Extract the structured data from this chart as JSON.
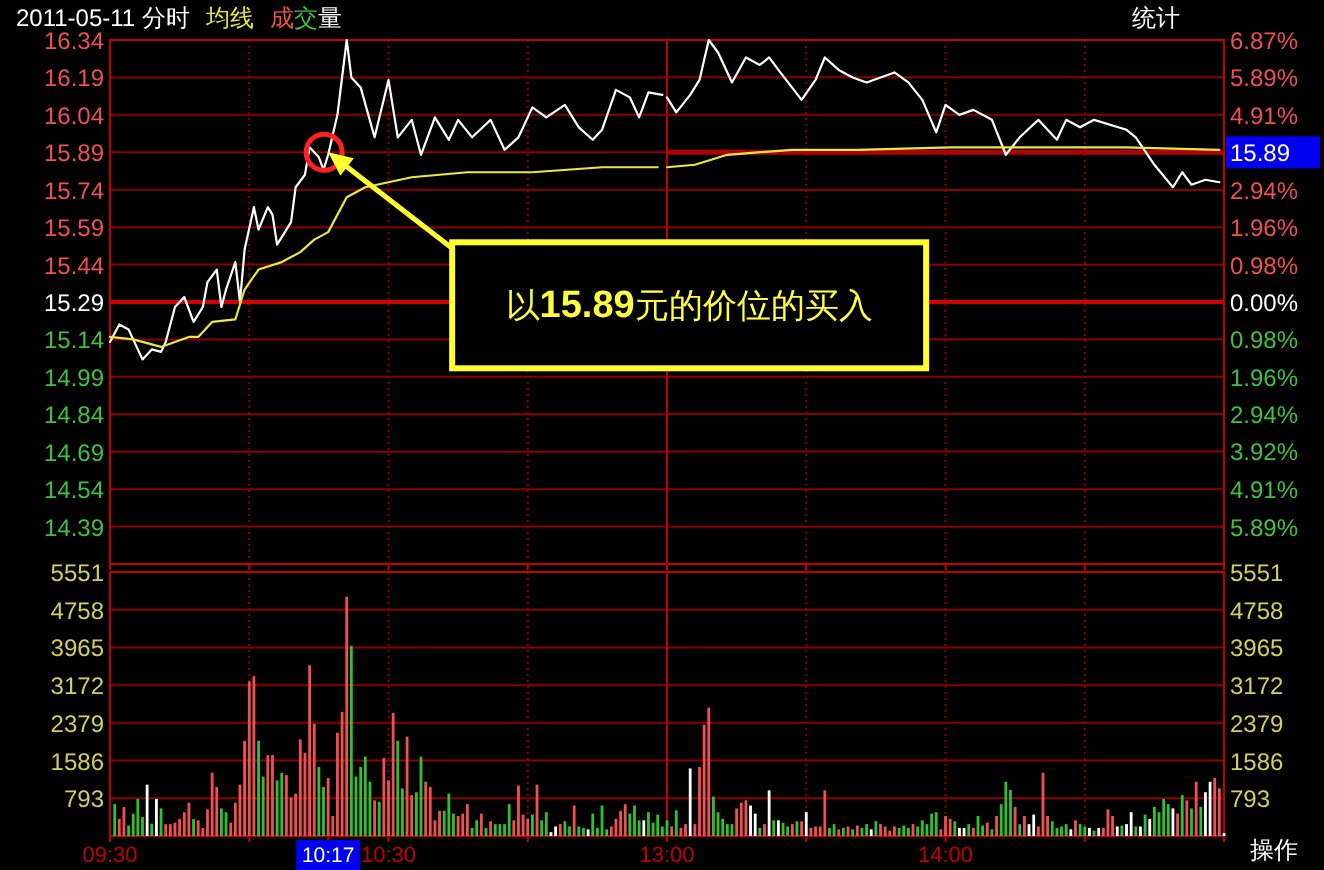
{
  "chart_data": [
    {
      "type": "line",
      "title": "2011-05-11 分时",
      "legend": "top left",
      "grid": true,
      "tick_labels": "y",
      "xlim": [
        "2011-05-11T09:30",
        "2011-05-11T11:30"
      ],
      "xticks": [
        {
          "value": "2011-05-11T09:30",
          "label": null
        },
        {
          "value": "2011-05-11T10:00",
          "label": null
        },
        {
          "value": "2011-05-11T10:30",
          "label": null
        },
        {
          "value": "2011-05-11T11:00",
          "label": null
        },
        {
          "value": "2011-05-11T11:30",
          "label": null
        }
      ],
      "ylim": [
        14.24,
        16.34
      ],
      "yticks": [
        14.39,
        14.54,
        14.69,
        14.84,
        14.99,
        15.14,
        15.29,
        15.44,
        15.59,
        15.74,
        15.89,
        16.04,
        16.19,
        16.34
      ],
      "ref_lines": [
        {
          "axis": "y",
          "value": 15.29,
          "color": "#d00000"
        }
      ],
      "series": [
        {
          "color": "#ffffff",
          "x": [
            "2011-05-11T09:30",
            "2011-05-11T09:32",
            "2011-05-11T09:34",
            "2011-05-11T09:36",
            "2011-05-11T09:37",
            "2011-05-11T09:39",
            "2011-05-11T09:41",
            "2011-05-11T09:42",
            "2011-05-11T09:44",
            "2011-05-11T09:46",
            "2011-05-11T09:48",
            "2011-05-11T09:50",
            "2011-05-11T09:51",
            "2011-05-11T09:53",
            "2011-05-11T09:54",
            "2011-05-11T09:55",
            "2011-05-11T09:57",
            "2011-05-11T09:58",
            "2011-05-11T09:59",
            "2011-05-11T10:01",
            "2011-05-11T10:02",
            "2011-05-11T10:04",
            "2011-05-11T10:05",
            "2011-05-11T10:06",
            "2011-05-11T10:09",
            "2011-05-11T10:10",
            "2011-05-11T10:12",
            "2011-05-11T10:13",
            "2011-05-11T10:15",
            "2011-05-11T10:16",
            "2011-05-11T10:17",
            "2011-05-11T10:19",
            "2011-05-11T10:21",
            "2011-05-11T10:22",
            "2011-05-11T10:24",
            "2011-05-11T10:27",
            "2011-05-11T10:30",
            "2011-05-11T10:32",
            "2011-05-11T10:35",
            "2011-05-11T10:37",
            "2011-05-11T10:40",
            "2011-05-11T10:43",
            "2011-05-11T10:45",
            "2011-05-11T10:48",
            "2011-05-11T10:52",
            "2011-05-11T10:55",
            "2011-05-11T10:58",
            "2011-05-11T11:01",
            "2011-05-11T11:04",
            "2011-05-11T11:08",
            "2011-05-11T11:11",
            "2011-05-11T11:14",
            "2011-05-11T11:16",
            "2011-05-11T11:19",
            "2011-05-11T11:22",
            "2011-05-11T11:24",
            "2011-05-11T11:26",
            "2011-05-11T11:29"
          ],
          "values": [
            15.13,
            15.2,
            15.18,
            15.1,
            15.06,
            15.1,
            15.09,
            15.13,
            15.27,
            15.31,
            15.21,
            15.27,
            15.37,
            15.42,
            15.27,
            15.34,
            15.45,
            15.29,
            15.5,
            15.67,
            15.58,
            15.67,
            15.64,
            15.52,
            15.61,
            15.75,
            15.8,
            15.91,
            15.87,
            15.82,
            15.88,
            16.04,
            16.34,
            16.19,
            16.15,
            15.95,
            16.18,
            15.95,
            16.02,
            15.88,
            16.03,
            15.94,
            16.02,
            15.95,
            16.02,
            15.9,
            15.95,
            16.07,
            16.03,
            16.08,
            15.99,
            15.94,
            15.98,
            16.14,
            16.11,
            16.03,
            16.13,
            16.12
          ]
        },
        {
          "name": "均线",
          "color": "#e8e840",
          "x": [
            "2011-05-11T09:30",
            "2011-05-11T09:35",
            "2011-05-11T09:41",
            "2011-05-11T09:47",
            "2011-05-11T09:49",
            "2011-05-11T09:52",
            "2011-05-11T09:57",
            "2011-05-11T09:59",
            "2011-05-11T10:02",
            "2011-05-11T10:07",
            "2011-05-11T10:11",
            "2011-05-11T10:14",
            "2011-05-11T10:17",
            "2011-05-11T10:21",
            "2011-05-11T10:25",
            "2011-05-11T10:30",
            "2011-05-11T10:35",
            "2011-05-11T10:47",
            "2011-05-11T11:01",
            "2011-05-11T11:16",
            "2011-05-11T11:28"
          ],
          "values": [
            15.15,
            15.14,
            15.11,
            15.15,
            15.15,
            15.21,
            15.22,
            15.34,
            15.42,
            15.45,
            15.49,
            15.54,
            15.57,
            15.71,
            15.75,
            15.77,
            15.79,
            15.81,
            15.81,
            15.83,
            15.83
          ]
        }
      ],
      "annotations": [
        "以**15.89**元的价位的买入"
      ]
    },
    {
      "type": "line",
      "grid": true,
      "tick_labels": "y",
      "xlim": [
        "2011-05-11T13:00",
        "2011-05-11T15:00"
      ],
      "xticks": [
        {
          "value": "2011-05-11T13:00",
          "label": null
        },
        {
          "value": "2011-05-11T13:30",
          "label": null
        },
        {
          "value": "2011-05-11T14:00",
          "label": null
        },
        {
          "value": "2011-05-11T14:30",
          "label": null
        },
        {
          "value": "2011-05-11T15:00",
          "label": null
        }
      ],
      "ylim": [
        14.24,
        16.34
      ],
      "y2lim": [
        -6.87,
        6.87
      ],
      "y2ticks": [
        {
          "value": -5.89,
          "label": "5.89%"
        },
        {
          "value": -4.91,
          "label": "4.91%"
        },
        {
          "value": -3.92,
          "label": "3.92%"
        },
        {
          "value": -2.94,
          "label": "2.94%"
        },
        {
          "value": -1.96,
          "label": "1.96%"
        },
        {
          "value": -0.98,
          "label": "0.98%"
        },
        {
          "value": 0,
          "label": "0.00%"
        },
        {
          "value": 0.98,
          "label": "0.98%"
        },
        {
          "value": 1.96,
          "label": "1.96%"
        },
        {
          "value": 2.94,
          "label": "2.94%"
        },
        {
          "value": 3.92,
          "label": null
        },
        {
          "value": 4.91,
          "label": "4.91%"
        },
        {
          "value": 5.89,
          "label": "5.89%"
        },
        {
          "value": 6.87,
          "label": "6.87%"
        }
      ],
      "ref_lines": [
        {
          "axis": "y",
          "value": 15.29,
          "color": "#d00000"
        },
        {
          "axis": "y",
          "value": 15.89,
          "label": "15.89",
          "color": "#b00000"
        }
      ],
      "series": [
        {
          "color": "#ffffff",
          "x": [
            "2011-05-11T13:00",
            "2011-05-11T13:02",
            "2011-05-11T13:05",
            "2011-05-11T13:07",
            "2011-05-11T13:09",
            "2011-05-11T13:11",
            "2011-05-11T13:14",
            "2011-05-11T13:17",
            "2011-05-11T13:20",
            "2011-05-11T13:22",
            "2011-05-11T13:24",
            "2011-05-11T13:29",
            "2011-05-11T13:32",
            "2011-05-11T13:34",
            "2011-05-11T13:37",
            "2011-05-11T13:40",
            "2011-05-11T13:43",
            "2011-05-11T13:49",
            "2011-05-11T13:52",
            "2011-05-11T13:55",
            "2011-05-11T13:58",
            "2011-05-11T14:00",
            "2011-05-11T14:03",
            "2011-05-11T14:06",
            "2011-05-11T14:10",
            "2011-05-11T14:13",
            "2011-05-11T14:16",
            "2011-05-11T14:20",
            "2011-05-11T14:24",
            "2011-05-11T14:26",
            "2011-05-11T14:29",
            "2011-05-11T14:32",
            "2011-05-11T14:39",
            "2011-05-11T14:41",
            "2011-05-11T14:45",
            "2011-05-11T14:49",
            "2011-05-11T14:51",
            "2011-05-11T14:53",
            "2011-05-11T14:56",
            "2011-05-11T14:59"
          ],
          "values": [
            16.11,
            16.05,
            16.12,
            16.18,
            16.34,
            16.29,
            16.17,
            16.27,
            16.24,
            16.27,
            16.22,
            16.1,
            16.18,
            16.27,
            16.22,
            16.19,
            16.17,
            16.21,
            16.17,
            16.1,
            15.97,
            16.08,
            16.04,
            16.06,
            16.02,
            15.88,
            15.95,
            16.02,
            15.94,
            16.02,
            15.99,
            16.02,
            15.98,
            15.95,
            15.84,
            15.75,
            15.81,
            15.76,
            15.78,
            15.77
          ]
        },
        {
          "color": "#e8e840",
          "x": [
            "2011-05-11T13:00",
            "2011-05-11T13:06",
            "2011-05-11T13:13",
            "2011-05-11T13:27",
            "2011-05-11T13:41",
            "2011-05-11T14:01",
            "2011-05-11T14:39",
            "2011-05-11T14:59"
          ],
          "values": [
            15.83,
            15.84,
            15.88,
            15.9,
            15.9,
            15.91,
            15.91,
            15.9
          ]
        }
      ],
      "annotations": [
        "统计"
      ]
    },
    {
      "type": "bar",
      "legend": "top left",
      "grid": true,
      "xlim": [
        "2011-05-11T09:30",
        "2011-05-11T11:30"
      ],
      "xticks": [
        {
          "value": "2011-05-11T09:30",
          "label": "09:30"
        },
        {
          "value": "2011-05-11T10:00",
          "label": null
        },
        {
          "value": "2011-05-11T10:17",
          "label": "10:17"
        },
        {
          "value": "2011-05-11T10:30",
          "label": "10:30"
        },
        {
          "value": "2011-05-11T11:00",
          "label": null
        },
        {
          "value": "2011-05-11T11:30",
          "label": null
        }
      ],
      "ylim": [
        0,
        5551
      ],
      "yticks": [
        793,
        1586,
        2379,
        3172,
        3965,
        4758,
        5551
      ],
      "series": [
        {
          "name": "成交量",
          "x": [
            "2011-05-11T09:31",
            "2011-05-11T09:32",
            "2011-05-11T09:33",
            "2011-05-11T09:34",
            "2011-05-11T09:35",
            "2011-05-11T09:36",
            "2011-05-11T09:37",
            "2011-05-11T09:38",
            "2011-05-11T09:39",
            "2011-05-11T09:40",
            "2011-05-11T09:41",
            "2011-05-11T09:42",
            "2011-05-11T09:43",
            "2011-05-11T09:44",
            "2011-05-11T09:45",
            "2011-05-11T09:46",
            "2011-05-11T09:47",
            "2011-05-11T09:48",
            "2011-05-11T09:49",
            "2011-05-11T09:50",
            "2011-05-11T09:51",
            "2011-05-11T09:52",
            "2011-05-11T09:53",
            "2011-05-11T09:54",
            "2011-05-11T09:55",
            "2011-05-11T09:56",
            "2011-05-11T09:57",
            "2011-05-11T09:58",
            "2011-05-11T09:59",
            "2011-05-11T10:00",
            "2011-05-11T10:01",
            "2011-05-11T10:02",
            "2011-05-11T10:03",
            "2011-05-11T10:04",
            "2011-05-11T10:05",
            "2011-05-11T10:06",
            "2011-05-11T10:07",
            "2011-05-11T10:08",
            "2011-05-11T10:09",
            "2011-05-11T10:10",
            "2011-05-11T10:11",
            "2011-05-11T10:12",
            "2011-05-11T10:13",
            "2011-05-11T10:14",
            "2011-05-11T10:15",
            "2011-05-11T10:16",
            "2011-05-11T10:17",
            "2011-05-11T10:18",
            "2011-05-11T10:19",
            "2011-05-11T10:20",
            "2011-05-11T10:21",
            "2011-05-11T10:22",
            "2011-05-11T10:23",
            "2011-05-11T10:24",
            "2011-05-11T10:25",
            "2011-05-11T10:26",
            "2011-05-11T10:27",
            "2011-05-11T10:28",
            "2011-05-11T10:29",
            "2011-05-11T10:30",
            "2011-05-11T10:31",
            "2011-05-11T10:32",
            "2011-05-11T10:33",
            "2011-05-11T10:34",
            "2011-05-11T10:35",
            "2011-05-11T10:36",
            "2011-05-11T10:37",
            "2011-05-11T10:38",
            "2011-05-11T10:39",
            "2011-05-11T10:40",
            "2011-05-11T10:41",
            "2011-05-11T10:42",
            "2011-05-11T10:43",
            "2011-05-11T10:44",
            "2011-05-11T10:45",
            "2011-05-11T10:46",
            "2011-05-11T10:47",
            "2011-05-11T10:48",
            "2011-05-11T10:49",
            "2011-05-11T10:50",
            "2011-05-11T10:51",
            "2011-05-11T10:52",
            "2011-05-11T10:53",
            "2011-05-11T10:54",
            "2011-05-11T10:55",
            "2011-05-11T10:56",
            "2011-05-11T10:57",
            "2011-05-11T10:58",
            "2011-05-11T10:59",
            "2011-05-11T11:00",
            "2011-05-11T11:01",
            "2011-05-11T11:02",
            "2011-05-11T11:03",
            "2011-05-11T11:04",
            "2011-05-11T11:05",
            "2011-05-11T11:06",
            "2011-05-11T11:07",
            "2011-05-11T11:08",
            "2011-05-11T11:09",
            "2011-05-11T11:10",
            "2011-05-11T11:11",
            "2011-05-11T11:12",
            "2011-05-11T11:13",
            "2011-05-11T11:14",
            "2011-05-11T11:15",
            "2011-05-11T11:16",
            "2011-05-11T11:17",
            "2011-05-11T11:18",
            "2011-05-11T11:19",
            "2011-05-11T11:20",
            "2011-05-11T11:21",
            "2011-05-11T11:22",
            "2011-05-11T11:23",
            "2011-05-11T11:24",
            "2011-05-11T11:25",
            "2011-05-11T11:26",
            "2011-05-11T11:27",
            "2011-05-11T11:28",
            "2011-05-11T11:29"
          ],
          "values": [
            670,
            360,
            610,
            220,
            470,
            780,
            400,
            1080,
            260,
            780,
            580,
            250,
            250,
            280,
            360,
            500,
            700,
            360,
            330,
            170,
            560,
            1330,
            1030,
            580,
            500,
            280,
            700,
            1080,
            2000,
            3250,
            3360,
            2000,
            1250,
            1700,
            1700,
            1170,
            1330,
            1280,
            810,
            890,
            2030,
            1750,
            3590,
            2360,
            1450,
            1030,
            1220,
            420,
            2170,
            2610,
            5030,
            4000,
            1250,
            1450,
            1670,
            1140,
            750,
            720,
            1640,
            1170,
            2590,
            2000,
            1000,
            2090,
            860,
            920,
            1670,
            1140,
            1030,
            330,
            530,
            530,
            890,
            470,
            420,
            470,
            670,
            170,
            330,
            470,
            170,
            310,
            250,
            250,
            250,
            670,
            330,
            1060,
            450,
            360,
            450,
            1080,
            330,
            500,
            80,
            200,
            250,
            310,
            200,
            640,
            200,
            170,
            140,
            470,
            170,
            640,
            140,
            200,
            360,
            530,
            670,
            470,
            640,
            330,
            330,
            500,
            280,
            450,
            200
          ],
          "colors": [
            "#30c030",
            "#f05050",
            "#f05050",
            "#30c030",
            "#30c030",
            "#30c030",
            "#30c030",
            "#ffffff",
            "#30c030",
            "#ffffff",
            "#30c030",
            "#f05050",
            "#f05050",
            "#f05050",
            "#f05050",
            "#f05050",
            "#f05050",
            "#30c030",
            "#f05050",
            "#f05050",
            "#f05050",
            "#f05050",
            "#f05050",
            "#30c030",
            "#30c030",
            "#f05050",
            "#f05050",
            "#f05050",
            "#f05050",
            "#f05050",
            "#f05050",
            "#30c030",
            "#30c030",
            "#f05050",
            "#f05050",
            "#30c030",
            "#30c030",
            "#f05050",
            "#f05050",
            "#f05050",
            "#f05050",
            "#f05050",
            "#f05050",
            "#f05050",
            "#30c030",
            "#30c030",
            "#f05050",
            "#f05050",
            "#f05050",
            "#f05050",
            "#f05050",
            "#30c030",
            "#30c030",
            "#30c030",
            "#30c030",
            "#30c030",
            "#f05050",
            "#30c030",
            "#f05050",
            "#f05050",
            "#f05050",
            "#30c030",
            "#30c030",
            "#f05050",
            "#f05050",
            "#30c030",
            "#30c030",
            "#f05050",
            "#f05050",
            "#f05050",
            "#f05050",
            "#30c030",
            "#30c030",
            "#30c030",
            "#f05050",
            "#f05050",
            "#f05050",
            "#30c030",
            "#30c030",
            "#f05050",
            "#30c030",
            "#f05050",
            "#30c030",
            "#30c030",
            "#30c030",
            "#30c030",
            "#f05050",
            "#f05050",
            "#f05050",
            "#f05050",
            "#30c030",
            "#f05050",
            "#30c030",
            "#30c030",
            "#ffffff",
            "#ffffff",
            "#f05050",
            "#30c030",
            "#30c030",
            "#f05050",
            "#30c030",
            "#30c030",
            "#ffffff",
            "#30c030",
            "#30c030",
            "#30c030",
            "#30c030",
            "#f05050",
            "#f05050",
            "#f05050",
            "#f05050",
            "#30c030",
            "#30c030",
            "#30c030",
            "#ffffff",
            "#30c030",
            "#30c030",
            "#30c030",
            "#30c030"
          ]
        }
      ]
    },
    {
      "type": "bar",
      "grid": true,
      "xlim": [
        "2011-05-11T13:00",
        "2011-05-11T15:00"
      ],
      "xticks": [
        {
          "value": "2011-05-11T13:00",
          "label": "13:00"
        },
        {
          "value": "2011-05-11T13:30",
          "label": null
        },
        {
          "value": "2011-05-11T14:00",
          "label": "14:00"
        },
        {
          "value": "2011-05-11T14:30",
          "label": null
        },
        {
          "value": "2011-05-11T15:00",
          "label": null
        }
      ],
      "ylim": [
        0,
        5551
      ],
      "yticks": [
        793,
        1586,
        2379,
        3172,
        3965,
        4758,
        5551
      ],
      "series": [
        {
          "x": [
            "2011-05-11T13:00",
            "2011-05-11T13:01",
            "2011-05-11T13:02",
            "2011-05-11T13:03",
            "2011-05-11T13:04",
            "2011-05-11T13:05",
            "2011-05-11T13:06",
            "2011-05-11T13:07",
            "2011-05-11T13:08",
            "2011-05-11T13:09",
            "2011-05-11T13:10",
            "2011-05-11T13:11",
            "2011-05-11T13:12",
            "2011-05-11T13:13",
            "2011-05-11T13:14",
            "2011-05-11T13:15",
            "2011-05-11T13:16",
            "2011-05-11T13:17",
            "2011-05-11T13:18",
            "2011-05-11T13:19",
            "2011-05-11T13:20",
            "2011-05-11T13:21",
            "2011-05-11T13:22",
            "2011-05-11T13:23",
            "2011-05-11T13:24",
            "2011-05-11T13:25",
            "2011-05-11T13:26",
            "2011-05-11T13:27",
            "2011-05-11T13:28",
            "2011-05-11T13:29",
            "2011-05-11T13:30",
            "2011-05-11T13:31",
            "2011-05-11T13:32",
            "2011-05-11T13:33",
            "2011-05-11T13:34",
            "2011-05-11T13:35",
            "2011-05-11T13:36",
            "2011-05-11T13:37",
            "2011-05-11T13:38",
            "2011-05-11T13:39",
            "2011-05-11T13:40",
            "2011-05-11T13:41",
            "2011-05-11T13:42",
            "2011-05-11T13:43",
            "2011-05-11T13:44",
            "2011-05-11T13:45",
            "2011-05-11T13:46",
            "2011-05-11T13:47",
            "2011-05-11T13:48",
            "2011-05-11T13:49",
            "2011-05-11T13:50",
            "2011-05-11T13:51",
            "2011-05-11T13:52",
            "2011-05-11T13:53",
            "2011-05-11T13:54",
            "2011-05-11T13:55",
            "2011-05-11T13:56",
            "2011-05-11T13:57",
            "2011-05-11T13:58",
            "2011-05-11T13:59",
            "2011-05-11T14:00",
            "2011-05-11T14:01",
            "2011-05-11T14:02",
            "2011-05-11T14:03",
            "2011-05-11T14:04",
            "2011-05-11T14:05",
            "2011-05-11T14:06",
            "2011-05-11T14:07",
            "2011-05-11T14:08",
            "2011-05-11T14:09",
            "2011-05-11T14:10",
            "2011-05-11T14:11",
            "2011-05-11T14:12",
            "2011-05-11T14:13",
            "2011-05-11T14:14",
            "2011-05-11T14:15",
            "2011-05-11T14:16",
            "2011-05-11T14:17",
            "2011-05-11T14:18",
            "2011-05-11T14:19",
            "2011-05-11T14:20",
            "2011-05-11T14:21",
            "2011-05-11T14:22",
            "2011-05-11T14:23",
            "2011-05-11T14:24",
            "2011-05-11T14:25",
            "2011-05-11T14:26",
            "2011-05-11T14:27",
            "2011-05-11T14:28",
            "2011-05-11T14:29",
            "2011-05-11T14:30",
            "2011-05-11T14:31",
            "2011-05-11T14:32",
            "2011-05-11T14:33",
            "2011-05-11T14:34",
            "2011-05-11T14:35",
            "2011-05-11T14:36",
            "2011-05-11T14:37",
            "2011-05-11T14:38",
            "2011-05-11T14:39",
            "2011-05-11T14:40",
            "2011-05-11T14:41",
            "2011-05-11T14:42",
            "2011-05-11T14:43",
            "2011-05-11T14:44",
            "2011-05-11T14:45",
            "2011-05-11T14:46",
            "2011-05-11T14:47",
            "2011-05-11T14:48",
            "2011-05-11T14:49",
            "2011-05-11T14:50",
            "2011-05-11T14:51",
            "2011-05-11T14:52",
            "2011-05-11T14:53",
            "2011-05-11T14:54",
            "2011-05-11T14:55",
            "2011-05-11T14:56",
            "2011-05-11T14:57",
            "2011-05-11T14:58",
            "2011-05-11T14:59",
            "2011-05-11T15:00"
          ],
          "values": [
            330,
            200,
            540,
            170,
            250,
            1420,
            250,
            1450,
            2340,
            2700,
            830,
            500,
            360,
            250,
            250,
            580,
            700,
            750,
            640,
            470,
            170,
            250,
            960,
            330,
            330,
            280,
            200,
            250,
            310,
            310,
            500,
            170,
            200,
            200,
            960,
            170,
            250,
            140,
            170,
            200,
            140,
            220,
            170,
            250,
            140,
            310,
            250,
            200,
            110,
            200,
            170,
            220,
            170,
            250,
            200,
            330,
            250,
            470,
            500,
            140,
            420,
            360,
            310,
            170,
            170,
            250,
            170,
            420,
            220,
            280,
            140,
            420,
            670,
            1140,
            970,
            610,
            250,
            420,
            250,
            450,
            200,
            1330,
            420,
            310,
            170,
            200,
            250,
            140,
            330,
            250,
            200,
            170,
            110,
            170,
            170,
            560,
            420,
            200,
            220,
            250,
            500,
            200,
            200,
            450,
            360,
            610,
            500,
            780,
            670,
            580,
            470,
            860,
            750,
            580,
            1140,
            610,
            920,
            1140,
            1220,
            1000,
            60
          ],
          "colors": [
            "#30c030",
            "#f05050",
            "#30c030",
            "#f05050",
            "#f05050",
            "#ffffff",
            "#f05050",
            "#f05050",
            "#f05050",
            "#f05050",
            "#30c030",
            "#30c030",
            "#30c030",
            "#30c030",
            "#30c030",
            "#f05050",
            "#f05050",
            "#f05050",
            "#ffffff",
            "#ffffff",
            "#30c030",
            "#f05050",
            "#ffffff",
            "#30c030",
            "#ffffff",
            "#30c030",
            "#30c030",
            "#f05050",
            "#30c030",
            "#f05050",
            "#ffffff",
            "#f05050",
            "#f05050",
            "#f05050",
            "#f05050",
            "#30c030",
            "#30c030",
            "#f05050",
            "#30c030",
            "#f05050",
            "#30c030",
            "#f05050",
            "#30c030",
            "#30c030",
            "#ffffff",
            "#30c030",
            "#f05050",
            "#f05050",
            "#f05050",
            "#f05050",
            "#30c030",
            "#30c030",
            "#30c030",
            "#f05050",
            "#30c030",
            "#30c030",
            "#30c030",
            "#30c030",
            "#30c030",
            "#f05050",
            "#f05050",
            "#f05050",
            "#30c030",
            "#ffffff",
            "#ffffff",
            "#30c030",
            "#f05050",
            "#30c030",
            "#30c030",
            "#f05050",
            "#30c030",
            "#f05050",
            "#30c030",
            "#30c030",
            "#30c030",
            "#f05050",
            "#30c030",
            "#f05050",
            "#ffffff",
            "#ffffff",
            "#f05050",
            "#f05050",
            "#f05050",
            "#30c030",
            "#30c030",
            "#30c030",
            "#30c030",
            "#ffffff",
            "#f05050",
            "#30c030",
            "#30c030",
            "#ffffff",
            "#30c030",
            "#ffffff",
            "#f05050",
            "#f05050",
            "#f05050",
            "#ffffff",
            "#30c030",
            "#ffffff",
            "#ffffff",
            "#30c030",
            "#ffffff",
            "#30c030",
            "#ffffff",
            "#30c030",
            "#30c030",
            "#30c030",
            "#30c030",
            "#ffffff",
            "#f05050",
            "#30c030",
            "#f05050",
            "#30c030",
            "#f05050",
            "#30c030",
            "#ffffff",
            "#ffffff",
            "#f05050",
            "#f05050",
            "#ffffff"
          ]
        }
      ],
      "annotations": [
        "操作"
      ]
    }
  ]
}
